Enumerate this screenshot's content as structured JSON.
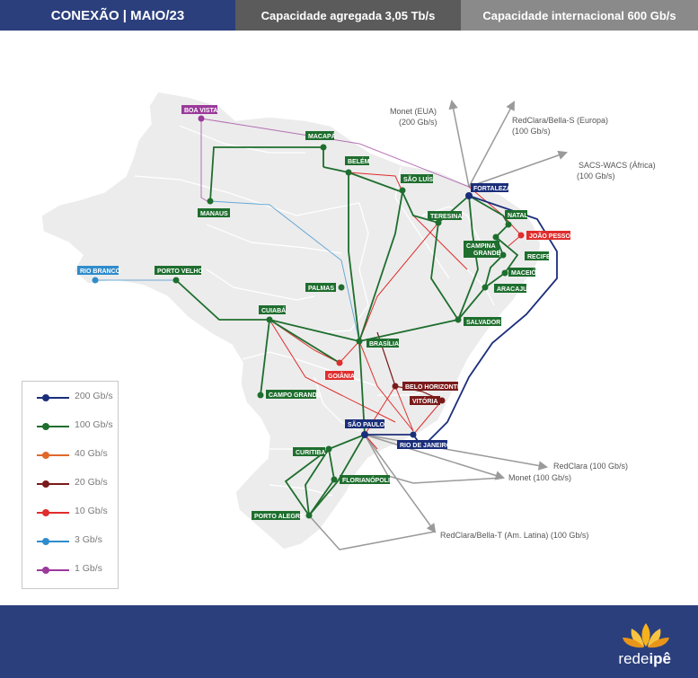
{
  "header": {
    "title": "CONEXÃO | MAIO/23",
    "aggregate": "Capacidade agregada 3,05 Tb/s",
    "international": "Capacidade internacional 600 Gb/s"
  },
  "colors": {
    "c200": "#1b2e7a",
    "c100": "#1e6e2e",
    "c40": "#e0692a",
    "c20": "#7a1a1a",
    "c10": "#e02d2d",
    "c3": "#2f8ccc",
    "c1": "#9a3a9a",
    "external": "#9a9a9a"
  },
  "legend": [
    {
      "label": "200 Gb/s",
      "color": "#1b2e7a"
    },
    {
      "label": "100 Gb/s",
      "color": "#1e6e2e"
    },
    {
      "label": "40 Gb/s",
      "color": "#e0692a"
    },
    {
      "label": "20 Gb/s",
      "color": "#7a1a1a"
    },
    {
      "label": "10 Gb/s",
      "color": "#e02d2d"
    },
    {
      "label": "3 Gb/s",
      "color": "#2f8ccc"
    },
    {
      "label": "1 Gb/s",
      "color": "#9a3a9a"
    }
  ],
  "cities": {
    "boavista": {
      "label": "BOA VISTA",
      "class": "c1"
    },
    "macapa": {
      "label": "MACAPÁ",
      "class": "c100"
    },
    "belem": {
      "label": "BELÉM",
      "class": "c100"
    },
    "manaus": {
      "label": "MANAUS",
      "class": "c100"
    },
    "saoluis": {
      "label": "SÃO LUÍS",
      "class": "c100"
    },
    "fortaleza": {
      "label": "FORTALEZA",
      "class": "c200"
    },
    "teresina": {
      "label": "TERESINA",
      "class": "c100"
    },
    "natal": {
      "label": "NATAL",
      "class": "c100"
    },
    "joaopessoa": {
      "label": "JOÃO PESSOA",
      "class": "c10"
    },
    "campina1": {
      "label": "CAMPINA",
      "class": "c100"
    },
    "campina2": {
      "label": "GRANDE",
      "class": "c100"
    },
    "recife": {
      "label": "RECIFE",
      "class": "c100"
    },
    "maceio": {
      "label": "MACEIÓ",
      "class": "c100"
    },
    "aracaju": {
      "label": "ARACAJU",
      "class": "c100"
    },
    "riobranco": {
      "label": "RIO BRANCO",
      "class": "c3"
    },
    "portovelho": {
      "label": "PORTO VELHO",
      "class": "c100"
    },
    "palmas": {
      "label": "PALMAS",
      "class": "c100"
    },
    "salvador": {
      "label": "SALVADOR",
      "class": "c100"
    },
    "cuiaba": {
      "label": "CUIABÁ",
      "class": "c100"
    },
    "brasilia": {
      "label": "BRASÍLIA",
      "class": "c100"
    },
    "goiania": {
      "label": "GOIÂNIA",
      "class": "c10"
    },
    "campogrande": {
      "label": "CAMPO GRANDE",
      "class": "c100"
    },
    "belohorizonte": {
      "label": "BELO HORIZONTE",
      "class": "c20"
    },
    "vitoria": {
      "label": "VITÓRIA",
      "class": "c20"
    },
    "saopaulo": {
      "label": "SÃO PAULO",
      "class": "c200"
    },
    "riodejaneiro": {
      "label": "RIO DE JANEIRO",
      "class": "c200"
    },
    "curitiba": {
      "label": "CURITIBA",
      "class": "c100"
    },
    "florianopolis": {
      "label": "FLORIANÓPOLIS",
      "class": "c100"
    },
    "portoalegre": {
      "label": "PORTO ALEGRE",
      "class": "c100"
    }
  },
  "external": {
    "monet_eua_1": "Monet (EUA)",
    "monet_eua_2": "(200 Gb/s)",
    "redclara_europa_1": "RedClara/Bella-S (Europa)",
    "redclara_europa_2": "(100 Gb/s)",
    "sacs_1": "SACS-WACS (África)",
    "sacs_2": "(100 Gb/s)",
    "redclara": "RedClara (100 Gb/s)",
    "monet": "Monet (100 Gb/s)",
    "redclara_latina": "RedClara/Bella-T (Am. Latina) (100 Gb/s)"
  },
  "logo": {
    "prefix": "rede",
    "suffix": "ipê"
  }
}
